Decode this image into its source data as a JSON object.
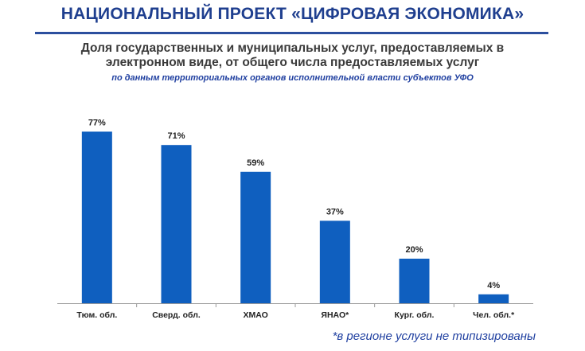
{
  "header": {
    "title": "НАЦИОНАЛЬНЫЙ ПРОЕКТ «ЦИФРОВАЯ ЭКОНОМИКА»",
    "subtitle_line1": "Доля государственных и муниципальных услуг, предоставляемых в",
    "subtitle_line2": "электронном виде, от общего числа предоставляемых услуг",
    "source": "по данным территориальных органов исполнительной власти субъектов УФО"
  },
  "footnote": "*в регионе услуги не типизированы",
  "colors": {
    "title": "#1f3f8f",
    "bar": "#0f5fbf",
    "accent": "#1f3fa0"
  },
  "chart_data": {
    "type": "bar",
    "categories": [
      "Тюм. обл.",
      "Сверд. обл.",
      "ХМАО",
      "ЯНАО*",
      "Кург. обл.",
      "Чел. обл.*"
    ],
    "values": [
      77,
      71,
      59,
      37,
      20,
      4
    ],
    "data_labels": [
      "77%",
      "71%",
      "59%",
      "37%",
      "20%",
      "4%"
    ],
    "ylim": [
      0,
      100
    ],
    "grid": false,
    "legend": "none"
  }
}
